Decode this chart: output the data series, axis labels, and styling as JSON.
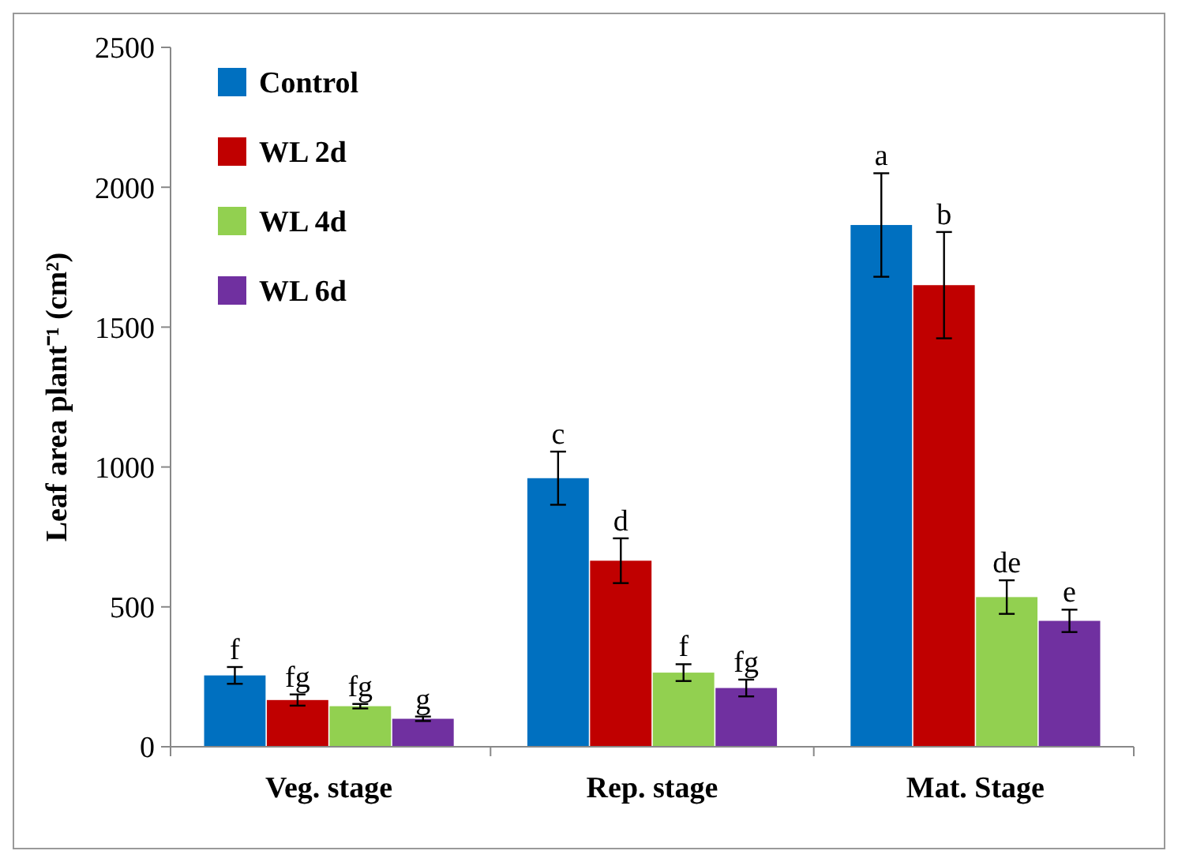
{
  "chart_data": {
    "type": "bar",
    "ylabel": "Leaf area plant⁻¹ (cm²)",
    "categories": [
      "Veg. stage",
      "Rep. stage",
      "Mat. Stage"
    ],
    "series": [
      {
        "name": "Control",
        "color": "#0070c0",
        "values": [
          255,
          960,
          1865
        ],
        "errors": [
          30,
          95,
          185
        ]
      },
      {
        "name": "WL 2d",
        "color": "#c00000",
        "values": [
          167,
          665,
          1650
        ],
        "errors": [
          20,
          80,
          190
        ]
      },
      {
        "name": "WL 4d",
        "color": "#92d050",
        "values": [
          145,
          265,
          535
        ],
        "errors": [
          8,
          30,
          60
        ]
      },
      {
        "name": "WL 6d",
        "color": "#7030a0",
        "values": [
          100,
          210,
          450
        ],
        "errors": [
          8,
          30,
          40
        ]
      }
    ],
    "ylim": [
      0,
      2500
    ],
    "yticks": [
      0,
      500,
      1000,
      1500,
      2000,
      2500
    ],
    "grid": false,
    "legend": "top left",
    "annotations": [
      "f",
      "fg",
      "fg",
      "g",
      "c",
      "d",
      "f",
      "fg",
      "a",
      "b",
      "de",
      "e"
    ]
  }
}
